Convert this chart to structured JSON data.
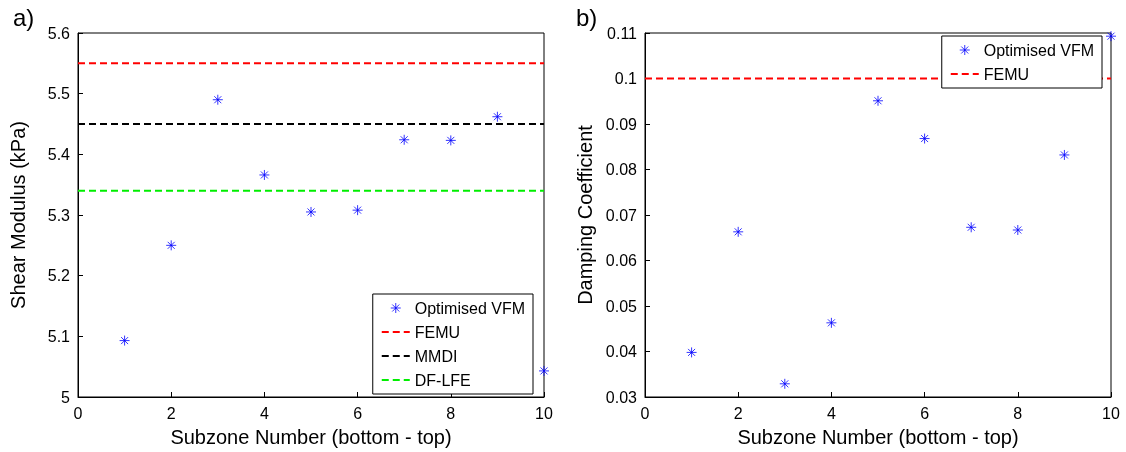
{
  "chart_data": [
    {
      "type": "scatter",
      "title": "a)",
      "xlabel": "Subzone Number (bottom - top)",
      "ylabel": "Shear Modulus (kPa)",
      "xlim": [
        0,
        10
      ],
      "xticks": [
        0,
        2,
        4,
        6,
        8,
        10
      ],
      "ylim": [
        5,
        5.6
      ],
      "yticks": [
        5,
        5.1,
        5.2,
        5.3,
        5.4,
        5.5,
        5.6
      ],
      "grid": false,
      "legend": "bottom right",
      "marker": "cross",
      "series": [
        {
          "name": "Optimised VFM",
          "color": "#0000ff",
          "x": [
            1,
            2,
            3,
            4,
            5,
            6,
            7,
            8,
            9,
            10
          ],
          "values": [
            5.093,
            5.25,
            5.49,
            5.366,
            5.305,
            5.308,
            5.424,
            5.423,
            5.462,
            5.043
          ]
        }
      ],
      "ref_lines": [
        {
          "axis": "y",
          "value": 5.55,
          "label": "FEMU",
          "color": "#ff0000",
          "line_style": "dashed"
        },
        {
          "axis": "y",
          "value": 5.45,
          "label": "MMDI",
          "color": "#000000",
          "line_style": "dashed"
        },
        {
          "axis": "y",
          "value": 5.34,
          "label": "DF-LFE",
          "color": "#00ee00",
          "line_style": "dashed"
        }
      ]
    },
    {
      "type": "scatter",
      "title": "b)",
      "xlabel": "Subzone Number (bottom - top)",
      "ylabel": "Damping Coefficient",
      "xlim": [
        0,
        10
      ],
      "xticks": [
        0,
        2,
        4,
        6,
        8,
        10
      ],
      "ylim": [
        0.03,
        0.11
      ],
      "yticks": [
        0.03,
        0.04,
        0.05,
        0.06,
        0.07,
        0.08,
        0.09,
        0.1,
        0.11
      ],
      "grid": false,
      "legend": "top right",
      "marker": "cross",
      "series": [
        {
          "name": "Optimised VFM",
          "color": "#0000ff",
          "x": [
            1,
            2,
            3,
            4,
            5,
            6,
            7,
            8,
            9,
            10
          ],
          "values": [
            0.0398,
            0.0663,
            0.0329,
            0.0463,
            0.0951,
            0.0868,
            0.0673,
            0.0667,
            0.0832,
            0.1093
          ]
        }
      ],
      "ref_lines": [
        {
          "axis": "y",
          "value": 0.1,
          "label": "FEMU",
          "color": "#ff0000",
          "line_style": "dashed"
        }
      ]
    }
  ]
}
